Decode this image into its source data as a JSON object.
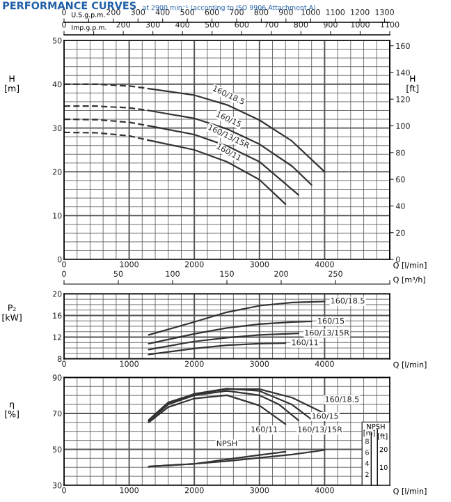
{
  "chart_data": [
    {
      "type": "other",
      "xlabel": "Imp.g.p.m.",
      "categories": [
        "0",
        null,
        "200",
        "300",
        "400",
        "500",
        "600",
        "700",
        "800",
        "900",
        "1000",
        "1100"
      ]
    },
    {
      "type": "line",
      "title": "PERFORMANCE CURVES",
      "subtitle": "at 2900 min⁻¹ (according to ISO 9906 Attachment A)",
      "xlabel": "Q [l/min]",
      "ylabel": "H\n[m]",
      "y2label": "H\n[ft]",
      "x2label": "U.S.g.p.m.",
      "xlim": [
        0,
        5000
      ],
      "ylim": [
        0,
        50
      ],
      "y2lim": [
        0,
        164
      ],
      "x2lim": [
        0,
        1321
      ],
      "xticks": [
        0,
        {
          "value": 200,
          "label": null
        },
        {
          "value": 400,
          "label": null
        },
        {
          "value": 600,
          "label": null
        },
        {
          "value": 800,
          "label": null
        },
        1000,
        {
          "value": 1200,
          "label": null
        },
        {
          "value": 1400,
          "label": null
        },
        {
          "value": 1600,
          "label": null
        },
        {
          "value": 1800,
          "label": null
        },
        2000,
        {
          "value": 2200,
          "label": null
        },
        {
          "value": 2400,
          "label": null
        },
        {
          "value": 2600,
          "label": null
        },
        {
          "value": 2800,
          "label": null
        },
        3000,
        {
          "value": 3200,
          "label": null
        },
        {
          "value": 3400,
          "label": null
        },
        {
          "value": 3600,
          "label": null
        },
        {
          "value": 3800,
          "label": null
        },
        4000,
        {
          "value": 4200,
          "label": null
        },
        {
          "value": 4400,
          "label": null
        },
        {
          "value": 4600,
          "label": null
        },
        {
          "value": 4800,
          "label": null
        },
        {
          "value": 5000,
          "label": null
        }
      ],
      "yticks": [
        0,
        {
          "value": 2,
          "label": null
        },
        {
          "value": 4,
          "label": null
        },
        {
          "value": 6,
          "label": null
        },
        {
          "value": 8,
          "label": null
        },
        10,
        {
          "value": 12,
          "label": null
        },
        {
          "value": 14,
          "label": null
        },
        {
          "value": 16,
          "label": null
        },
        {
          "value": 18,
          "label": null
        },
        20,
        {
          "value": 22,
          "label": null
        },
        {
          "value": 24,
          "label": null
        },
        {
          "value": 26,
          "label": null
        },
        {
          "value": 28,
          "label": null
        },
        30,
        {
          "value": 32,
          "label": null
        },
        {
          "value": 34,
          "label": null
        },
        {
          "value": 36,
          "label": null
        },
        {
          "value": 38,
          "label": null
        },
        40,
        {
          "value": 42,
          "label": null
        },
        {
          "value": 44,
          "label": null
        },
        {
          "value": 46,
          "label": null
        },
        {
          "value": 48,
          "label": null
        },
        50
      ],
      "y2ticks": [
        0,
        20,
        40,
        60,
        80,
        100,
        120,
        140,
        160
      ],
      "x2ticks": [
        0,
        {
          "value": 100,
          "label": null
        },
        200,
        300,
        400,
        500,
        600,
        700,
        800,
        900,
        1000,
        1100,
        1200,
        1300
      ],
      "grid": true,
      "series": [
        {
          "color": "#333333",
          "line_style": "dashed",
          "x": [
            0,
            500,
            1000,
            1300
          ],
          "values": [
            40,
            40,
            39.6,
            39.0
          ]
        },
        {
          "name": "160/18.5",
          "color": "#333333",
          "line_style": "solid",
          "x": [
            1300,
            2000,
            2500,
            3000,
            3500,
            4000
          ],
          "values": [
            39.0,
            37.5,
            35.3,
            31.8,
            27.0,
            20.0
          ]
        },
        {
          "color": "#333333",
          "line_style": "dashed",
          "x": [
            0,
            500,
            1000,
            1300
          ],
          "values": [
            35,
            35,
            34.6,
            34.0
          ]
        },
        {
          "name": "160/15",
          "color": "#333333",
          "line_style": "solid",
          "x": [
            1300,
            2000,
            2500,
            3000,
            3500,
            3800
          ],
          "values": [
            34.0,
            32.2,
            29.8,
            26.3,
            21.3,
            17.0
          ]
        },
        {
          "color": "#333333",
          "line_style": "dashed",
          "x": [
            0,
            500,
            1000,
            1300
          ],
          "values": [
            32,
            31.9,
            31.3,
            30.5
          ]
        },
        {
          "name": "160/13/15R",
          "color": "#333333",
          "line_style": "solid",
          "x": [
            1300,
            2000,
            2500,
            3000,
            3600
          ],
          "values": [
            30.5,
            28.5,
            25.9,
            22.3,
            14.7
          ]
        },
        {
          "color": "#333333",
          "line_style": "dashed",
          "x": [
            0,
            500,
            1000,
            1300
          ],
          "values": [
            29,
            28.9,
            28.2,
            27.2
          ]
        },
        {
          "name": "160/11",
          "color": "#333333",
          "line_style": "solid",
          "x": [
            1300,
            2000,
            2500,
            3000,
            3400
          ],
          "values": [
            27.2,
            25.0,
            22.3,
            18.2,
            12.6
          ]
        }
      ]
    },
    {
      "type": "line",
      "xlabel": "Q [l/min]",
      "ylabel": "P₂\n[kW]",
      "x2label": "Q [m³/h]",
      "xlim": [
        0,
        5000
      ],
      "ylim": [
        8,
        20
      ],
      "x2lim": [
        0,
        300
      ],
      "x2ticks": [
        0,
        50,
        100,
        150,
        200,
        250,
        {
          "value": 300,
          "label": null
        }
      ],
      "xticks": [
        0,
        {
          "value": 200,
          "label": null
        },
        {
          "value": 400,
          "label": null
        },
        {
          "value": 600,
          "label": null
        },
        {
          "value": 800,
          "label": null
        },
        1000,
        {
          "value": 1200,
          "label": null
        },
        {
          "value": 1400,
          "label": null
        },
        {
          "value": 1600,
          "label": null
        },
        {
          "value": 1800,
          "label": null
        },
        2000,
        {
          "value": 2200,
          "label": null
        },
        {
          "value": 2400,
          "label": null
        },
        {
          "value": 2600,
          "label": null
        },
        {
          "value": 2800,
          "label": null
        },
        3000,
        {
          "value": 3200,
          "label": null
        },
        {
          "value": 3400,
          "label": null
        },
        {
          "value": 3600,
          "label": null
        },
        {
          "value": 3800,
          "label": null
        },
        4000,
        {
          "value": 4200,
          "label": null
        },
        {
          "value": 4400,
          "label": null
        },
        {
          "value": 4600,
          "label": null
        },
        {
          "value": 4800,
          "label": null
        },
        {
          "value": 5000,
          "label": null
        }
      ],
      "yticks": [
        8,
        {
          "value": 9,
          "label": null
        },
        {
          "value": 10,
          "label": null
        },
        {
          "value": 11,
          "label": null
        },
        12,
        {
          "value": 13,
          "label": null
        },
        {
          "value": 14,
          "label": null
        },
        {
          "value": 15,
          "label": null
        },
        16,
        {
          "value": 17,
          "label": null
        },
        {
          "value": 18,
          "label": null
        },
        {
          "value": 19,
          "label": null
        },
        20
      ],
      "grid": true,
      "series": [
        {
          "name": "160/18.5",
          "color": "#333333",
          "x": [
            1300,
            2000,
            2500,
            3000,
            3500,
            4000
          ],
          "values": [
            12.4,
            14.8,
            16.6,
            17.8,
            18.4,
            18.6
          ]
        },
        {
          "name": "160/15",
          "color": "#333333",
          "x": [
            1300,
            2000,
            2500,
            3000,
            3500,
            3800
          ],
          "values": [
            10.8,
            12.6,
            13.7,
            14.4,
            14.8,
            14.9
          ]
        },
        {
          "name": "160/13/15R",
          "color": "#333333",
          "x": [
            1300,
            2000,
            2500,
            3000,
            3600
          ],
          "values": [
            9.7,
            11.2,
            11.9,
            12.4,
            12.7
          ]
        },
        {
          "name": "160/11",
          "color": "#333333",
          "x": [
            1300,
            2000,
            2500,
            3000,
            3400
          ],
          "values": [
            8.8,
            9.9,
            10.5,
            10.8,
            10.9
          ]
        }
      ]
    },
    {
      "type": "line",
      "xlabel": "Q [l/min]",
      "ylabel": "η\n[%]",
      "y2label": "[m]",
      "y3label": "[ft]",
      "annotations": [
        "NPSH"
      ],
      "xlim": [
        0,
        5000
      ],
      "ylim": [
        30,
        90
      ],
      "y2lim": [
        0,
        19.6
      ],
      "y3lim": [
        0,
        60
      ],
      "xticks": [
        0,
        {
          "value": 200,
          "label": null
        },
        {
          "value": 400,
          "label": null
        },
        {
          "value": 600,
          "label": null
        },
        {
          "value": 800,
          "label": null
        },
        1000,
        {
          "value": 1200,
          "label": null
        },
        {
          "value": 1400,
          "label": null
        },
        {
          "value": 1600,
          "label": null
        },
        {
          "value": 1800,
          "label": null
        },
        2000,
        {
          "value": 2200,
          "label": null
        },
        {
          "value": 2400,
          "label": null
        },
        {
          "value": 2600,
          "label": null
        },
        {
          "value": 2800,
          "label": null
        },
        3000,
        {
          "value": 3200,
          "label": null
        },
        {
          "value": 3400,
          "label": null
        },
        {
          "value": 3600,
          "label": null
        },
        {
          "value": 3800,
          "label": null
        },
        4000,
        {
          "value": 4200,
          "label": null
        },
        {
          "value": 4400,
          "label": null
        },
        {
          "value": 4600,
          "label": null
        },
        {
          "value": 4800,
          "label": null
        },
        {
          "value": 5000,
          "label": null
        }
      ],
      "yticks": [
        30,
        {
          "value": 35,
          "label": null
        },
        {
          "value": 40,
          "label": null
        },
        {
          "value": 45,
          "label": null
        },
        50,
        {
          "value": 55,
          "label": null
        },
        {
          "value": 60,
          "label": null
        },
        {
          "value": 65,
          "label": null
        },
        70,
        {
          "value": 75,
          "label": null
        },
        {
          "value": 80,
          "label": null
        },
        {
          "value": 85,
          "label": null
        },
        90
      ],
      "y2ticks": [
        2,
        4,
        6,
        8
      ],
      "y3ticks": [
        10,
        20
      ],
      "grid": true,
      "series": [
        {
          "name": "160/18.5",
          "color": "#333333",
          "x": [
            1300,
            1600,
            2000,
            2500,
            3000,
            3500,
            4000
          ],
          "values": [
            66.4,
            76.2,
            80.6,
            83.5,
            83.5,
            78.8,
            70
          ]
        },
        {
          "name": "160/15",
          "color": "#333333",
          "x": [
            1300,
            1600,
            2000,
            2500,
            3000,
            3500,
            3800
          ],
          "values": [
            66,
            75.5,
            80.9,
            83.8,
            82.5,
            74.9,
            66.6
          ]
        },
        {
          "name": "160/13/15R",
          "color": "#333333",
          "x": [
            1300,
            1600,
            2000,
            2500,
            3000,
            3300,
            3600
          ],
          "values": [
            65.5,
            75,
            80.1,
            82.5,
            80.1,
            75,
            66.1
          ]
        },
        {
          "name": "160/11",
          "color": "#333333",
          "x": [
            1300,
            1600,
            2000,
            2500,
            3000,
            3400
          ],
          "values": [
            65,
            73.5,
            78.3,
            80.1,
            74.4,
            64
          ]
        },
        {
          "color": "#333333",
          "axis": "y2",
          "x": [
            1300,
            2000,
            2500,
            3000,
            3500,
            4000
          ],
          "values": [
            3.4,
            3.9,
            4.4,
            5.0,
            5.6,
            6.4
          ]
        },
        {
          "name": "NPSH",
          "color": "#333333",
          "axis": "y2",
          "x": [
            1300,
            2000,
            2500,
            3000,
            3400
          ],
          "values": [
            3.4,
            3.9,
            4.7,
            5.5,
            6.1
          ]
        }
      ]
    }
  ]
}
